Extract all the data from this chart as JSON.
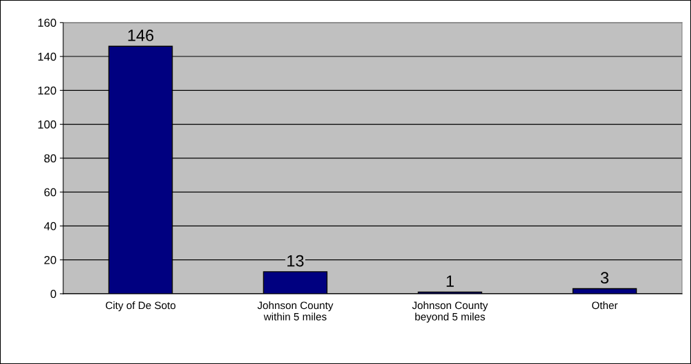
{
  "chart_data": {
    "type": "bar",
    "categories": [
      "City of De Soto",
      "Johnson County\nwithin 5 miles",
      "Johnson County\nbeyond 5 miles",
      "Other"
    ],
    "values": [
      146,
      13,
      1,
      3
    ],
    "color": "#000080",
    "ylim": [
      0,
      160
    ],
    "yticks": [
      0,
      20,
      40,
      60,
      80,
      100,
      120,
      140,
      160
    ],
    "grid": "y",
    "data_labels": true
  }
}
